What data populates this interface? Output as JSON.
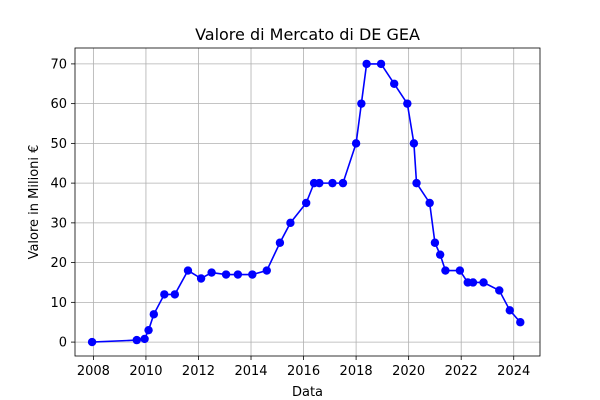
{
  "chart_data": {
    "type": "line",
    "title": "Valore di Mercato di DE GEA",
    "xlabel": "Data",
    "ylabel": "Valore in Milioni €",
    "xlim": [
      2007.3,
      2025.0
    ],
    "ylim": [
      -3.5,
      74
    ],
    "xticks": [
      2008,
      2010,
      2012,
      2014,
      2016,
      2018,
      2020,
      2022,
      2024
    ],
    "xtick_labels": [
      "2008",
      "2010",
      "2012",
      "2014",
      "2016",
      "2018",
      "2020",
      "2022",
      "2024"
    ],
    "yticks": [
      0,
      10,
      20,
      30,
      40,
      50,
      60,
      70
    ],
    "ytick_labels": [
      "0",
      "10",
      "20",
      "30",
      "40",
      "50",
      "60",
      "70"
    ],
    "grid": true,
    "color": "#0000ff",
    "marker": "circle",
    "series": [
      {
        "x": [
          2007.95,
          2009.65,
          2009.95,
          2010.1,
          2010.3,
          2010.7,
          2011.1,
          2011.6,
          2012.1,
          2012.5,
          2013.05,
          2013.5,
          2014.05,
          2014.6,
          2015.1,
          2015.5,
          2016.1,
          2016.4,
          2016.6,
          2017.1,
          2017.5,
          2018.0,
          2018.2,
          2018.4,
          2018.95,
          2019.45,
          2019.95,
          2020.2,
          2020.3,
          2020.8,
          2021.0,
          2021.2,
          2021.4,
          2021.95,
          2022.25,
          2022.45,
          2022.85,
          2023.45,
          2023.85,
          2024.25
        ],
        "y": [
          0,
          0.5,
          0.8,
          3,
          7,
          12,
          12,
          18,
          16,
          17.5,
          17,
          17,
          17,
          18,
          25,
          30,
          35,
          40,
          40,
          40,
          40,
          50,
          60,
          70,
          70,
          65,
          60,
          50,
          40,
          35,
          25,
          22,
          18,
          18,
          15,
          15,
          15,
          13,
          8,
          5
        ]
      }
    ]
  }
}
